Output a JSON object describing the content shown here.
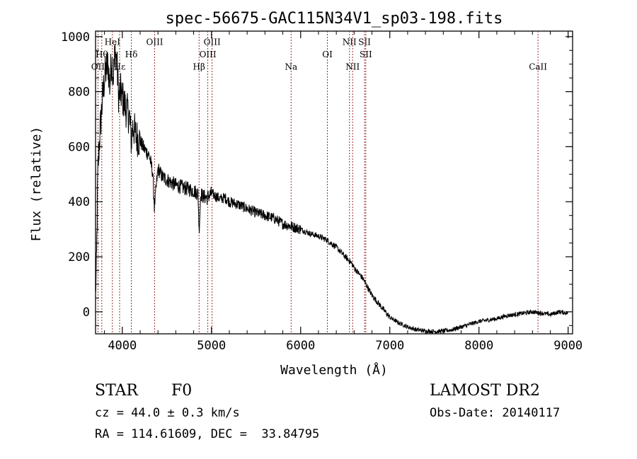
{
  "chart_data": {
    "type": "line",
    "title": "spec-56675-GAC115N34V1_sp03-198.fits",
    "xlabel": "Wavelength (Å)",
    "ylabel": "Flux (relative)",
    "xlim": [
      3700,
      9050
    ],
    "ylim": [
      -80,
      1020
    ],
    "x_ticks": [
      4000,
      5000,
      6000,
      7000,
      8000,
      9000
    ],
    "x_tick_labels": [
      "4000",
      "5000",
      "6000",
      "7000",
      "8000",
      "9000"
    ],
    "y_ticks": [
      0,
      200,
      400,
      600,
      800,
      1000
    ],
    "y_tick_labels": [
      "0",
      "200",
      "400",
      "600",
      "800",
      "1000"
    ],
    "grid": false,
    "legend": "none",
    "line_color": "#000000",
    "series": [
      {
        "x": [
          3700,
          3710,
          3725,
          3740,
          3760,
          3780,
          3800,
          3820,
          3840,
          3860,
          3880,
          3900,
          3920,
          3940,
          3960,
          3980,
          4000,
          4020,
          4050,
          4080,
          4101,
          4120,
          4150,
          4200,
          4250,
          4300,
          4340,
          4360,
          4400,
          4450,
          4500,
          4550,
          4600,
          4650,
          4700,
          4750,
          4800,
          4850,
          4861,
          4880,
          4900,
          4950,
          5000,
          5050,
          5100,
          5150,
          5200,
          5250,
          5300,
          5400,
          5500,
          5600,
          5700,
          5800,
          5900,
          6000,
          6100,
          6200,
          6300,
          6400,
          6500,
          6563,
          6600,
          6700,
          6800,
          6900,
          7000,
          7100,
          7200,
          7300,
          7400,
          7500,
          7600,
          7700,
          7800,
          7900,
          8000,
          8100,
          8200,
          8300,
          8400,
          8500,
          8600,
          8700,
          8800,
          8900,
          9000
        ],
        "y": [
          80,
          150,
          500,
          600,
          700,
          780,
          850,
          880,
          900,
          820,
          920,
          860,
          950,
          900,
          780,
          800,
          780,
          760,
          730,
          710,
          620,
          680,
          640,
          620,
          590,
          570,
          510,
          380,
          520,
          490,
          480,
          470,
          460,
          455,
          450,
          445,
          440,
          430,
          290,
          430,
          420,
          415,
          430,
          420,
          410,
          415,
          400,
          395,
          390,
          375,
          360,
          350,
          340,
          320,
          310,
          300,
          285,
          275,
          260,
          235,
          200,
          180,
          160,
          120,
          60,
          20,
          -20,
          -40,
          -55,
          -65,
          -70,
          -72,
          -70,
          -65,
          -55,
          -45,
          -35,
          -30,
          -25,
          -15,
          -10,
          -5,
          0,
          -5,
          -10,
          0,
          -5
        ]
      }
    ],
    "lines": [
      {
        "x": 3727,
        "label": "OII",
        "label_y": 880
      },
      {
        "x": 3770,
        "label": "Hθ",
        "label_y": 925
      },
      {
        "x": 3889,
        "label": "HeI",
        "label_y": 970
      },
      {
        "x": 3970,
        "label": "Hε",
        "label_y": 880
      },
      {
        "x": 4101,
        "label": "Hδ",
        "label_y": 925
      },
      {
        "x": 4363,
        "label": "OIII",
        "label_y": 970
      },
      {
        "x": 4861,
        "label": "Hβ",
        "label_y": 880
      },
      {
        "x": 4959,
        "label": "OIII",
        "label_y": 925
      },
      {
        "x": 5007,
        "label": "OIII",
        "label_y": 970
      },
      {
        "x": 5893,
        "label": "Na",
        "label_y": 880
      },
      {
        "x": 6300,
        "label": "OI",
        "label_y": 925
      },
      {
        "x": 6548,
        "label": "NII",
        "label_y": 970
      },
      {
        "x": 6583,
        "label": "NII",
        "label_y": 880
      },
      {
        "x": 6717,
        "label": "SII",
        "label_y": 970
      },
      {
        "x": 6731,
        "label": "SII",
        "label_y": 925
      },
      {
        "x": 8662,
        "label": "CaII",
        "label_y": 880
      }
    ],
    "line_marker_color": "#8b1a1a"
  },
  "info": {
    "object_class": "STAR",
    "subclass": "F0",
    "redshift": "cz = 44.0 ± 0.3 km/s",
    "coords": "RA = 114.61609, DEC =  33.84795",
    "survey": "LAMOST DR2",
    "obs_date": "Obs-Date: 20140117"
  }
}
